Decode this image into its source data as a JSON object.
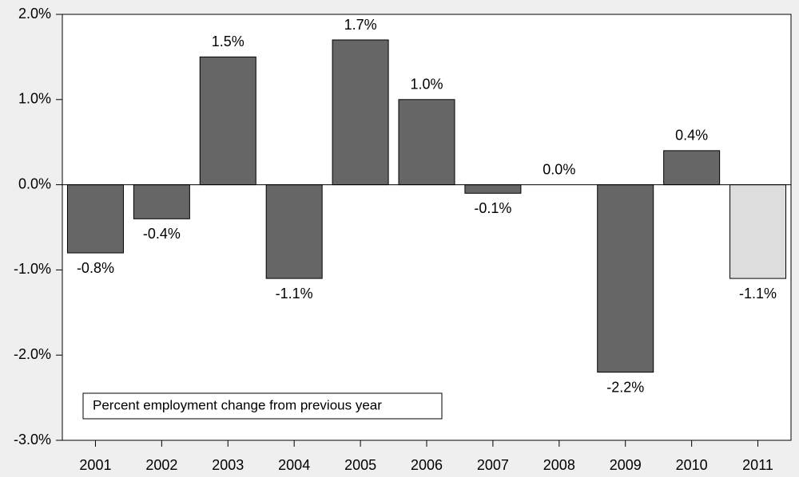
{
  "chart_data": {
    "type": "bar",
    "categories": [
      "2001",
      "2002",
      "2003",
      "2004",
      "2005",
      "2006",
      "2007",
      "2008",
      "2009",
      "2010",
      "2011"
    ],
    "values": [
      -0.8,
      -0.4,
      1.5,
      -1.1,
      1.7,
      1.0,
      -0.1,
      0.0,
      -2.2,
      0.4,
      -1.1
    ],
    "value_labels": [
      "-0.8%",
      "-0.4%",
      "1.5%",
      "-1.1%",
      "1.7%",
      "1.0%",
      "-0.1%",
      "0.0%",
      "-2.2%",
      "0.4%",
      "-1.1%"
    ],
    "colors": [
      "#666666",
      "#666666",
      "#666666",
      "#666666",
      "#666666",
      "#666666",
      "#666666",
      "#666666",
      "#666666",
      "#666666",
      "#dddddd"
    ],
    "ylim": [
      -3.0,
      2.0
    ],
    "yticks": [
      {
        "value": -3.0,
        "label": "-3.0%"
      },
      {
        "value": -2.0,
        "label": "-2.0%"
      },
      {
        "value": -1.0,
        "label": "-1.0%"
      },
      {
        "value": 0.0,
        "label": "0.0%"
      },
      {
        "value": 1.0,
        "label": "1.0%"
      },
      {
        "value": 2.0,
        "label": "2.0%"
      }
    ],
    "annotation": "Percent employment change from previous year",
    "grid": false
  }
}
